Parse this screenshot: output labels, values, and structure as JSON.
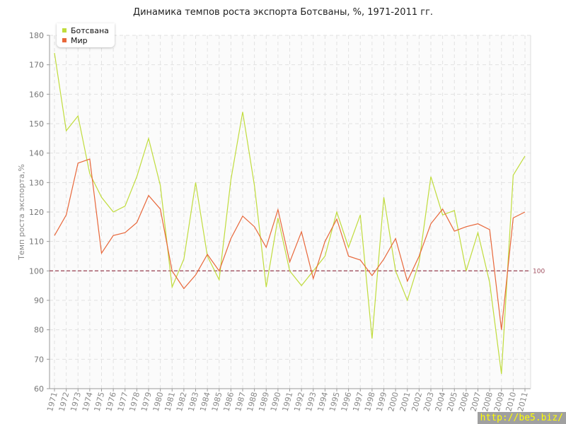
{
  "chart_data": {
    "type": "line",
    "title": "Динамика темпов роста экспорта Ботсваны, %, 1971-2011 гг.",
    "xlabel": "",
    "ylabel": "Темп роста экспорта,%",
    "ylim": [
      60,
      180
    ],
    "yticks": [
      60,
      70,
      80,
      90,
      100,
      110,
      120,
      130,
      140,
      150,
      160,
      170,
      180
    ],
    "grid": true,
    "legend_position": "top-left",
    "x": [
      1971,
      1972,
      1973,
      1974,
      1975,
      1976,
      1977,
      1978,
      1979,
      1980,
      1981,
      1982,
      1983,
      1984,
      1985,
      1986,
      1987,
      1988,
      1989,
      1990,
      1991,
      1992,
      1993,
      1994,
      1995,
      1996,
      1997,
      1998,
      1999,
      2000,
      2001,
      2002,
      2003,
      2004,
      2005,
      2006,
      2007,
      2008,
      2009,
      2010,
      2011
    ],
    "series": [
      {
        "name": "Ботсвана",
        "color": "#c0dc3c",
        "values": [
          174,
          147.6,
          152.6,
          133,
          125,
          120,
          122,
          132,
          145,
          129,
          94.5,
          104,
          130,
          105,
          97,
          131,
          154,
          129,
          94.5,
          118,
          100,
          95,
          100,
          105,
          120,
          108,
          119,
          77,
          125,
          100,
          90,
          103,
          132,
          119,
          120.5,
          100,
          113,
          96,
          65,
          132.5,
          139
        ]
      },
      {
        "name": "Мир",
        "color": "#e8673a",
        "values": [
          112,
          119,
          136.6,
          138,
          106,
          112,
          113,
          116.4,
          125.6,
          121,
          100,
          94,
          98.6,
          105.6,
          100,
          111,
          118.6,
          115,
          108,
          120.8,
          103,
          113.3,
          97.4,
          110,
          117.6,
          105,
          103.7,
          98.4,
          104,
          111,
          96.5,
          105,
          116,
          121,
          113.5,
          115,
          116,
          114,
          80,
          118,
          120
        ]
      }
    ],
    "reference_line": {
      "value": 100,
      "label": "100",
      "color": "#a05060"
    }
  },
  "watermark": "http://be5.biz/"
}
